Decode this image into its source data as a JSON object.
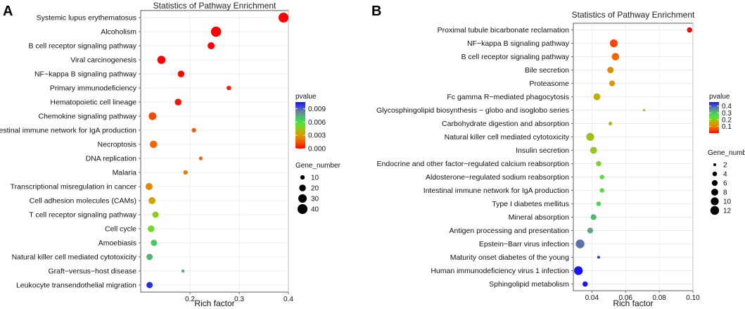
{
  "panels": [
    {
      "letter": "A",
      "chart_data": {
        "type": "scatter",
        "title": "Statistics of Pathway Enrichment",
        "xlabel": "Rich factor",
        "ylabel": "",
        "xlim": [
          0.1,
          0.4
        ],
        "xticks": [
          {
            "value": 0.2,
            "label": "0.2"
          },
          {
            "value": 0.3,
            "label": "0.3"
          },
          {
            "value": 0.4,
            "label": "0.4"
          }
        ],
        "grid": true,
        "categories": [
          "Systemic lupus erythematosus",
          "Alcoholism",
          "B cell receptor signaling pathway",
          "Viral carcinogenesis",
          "NF−kappa B signaling pathway",
          "Primary immunodeficiency",
          "Hematopoietic cell lineage",
          "Chemokine signaling pathway",
          "ntestinal immune network for IgA production",
          "Necroptosis",
          "DNA replication",
          "Malaria",
          "Transcriptional misregulation in cancer",
          "Cell adhesion molecules (CAMs)",
          "T cell receptor signaling pathway",
          "Cell cycle",
          "Amoebiasis",
          "Natural killer cell mediated cytotoxicity",
          "Graft−versus−host disease",
          "Leukocyte transendothelial migration"
        ],
        "points": [
          {
            "rich": 0.39,
            "pvalue": 0.0,
            "genes": 40
          },
          {
            "rich": 0.253,
            "pvalue": 0.0,
            "genes": 42
          },
          {
            "rich": 0.243,
            "pvalue": 0.0,
            "genes": 22
          },
          {
            "rich": 0.142,
            "pvalue": 0.0,
            "genes": 28
          },
          {
            "rich": 0.182,
            "pvalue": 0.0001,
            "genes": 20
          },
          {
            "rich": 0.279,
            "pvalue": 0.0004,
            "genes": 10
          },
          {
            "rich": 0.176,
            "pvalue": 0.0003,
            "genes": 20
          },
          {
            "rich": 0.124,
            "pvalue": 0.0012,
            "genes": 26
          },
          {
            "rich": 0.208,
            "pvalue": 0.0014,
            "genes": 10
          },
          {
            "rich": 0.126,
            "pvalue": 0.0016,
            "genes": 24
          },
          {
            "rich": 0.222,
            "pvalue": 0.0018,
            "genes": 8
          },
          {
            "rich": 0.191,
            "pvalue": 0.0022,
            "genes": 10
          },
          {
            "rich": 0.117,
            "pvalue": 0.0025,
            "genes": 22
          },
          {
            "rich": 0.123,
            "pvalue": 0.0034,
            "genes": 22
          },
          {
            "rich": 0.13,
            "pvalue": 0.0048,
            "genes": 18
          },
          {
            "rich": 0.121,
            "pvalue": 0.0052,
            "genes": 20
          },
          {
            "rich": 0.127,
            "pvalue": 0.0068,
            "genes": 18
          },
          {
            "rich": 0.118,
            "pvalue": 0.0072,
            "genes": 18
          },
          {
            "rich": 0.186,
            "pvalue": 0.007,
            "genes": 6
          },
          {
            "rich": 0.118,
            "pvalue": 0.01,
            "genes": 18
          }
        ],
        "legend_color": {
          "title": "pvalue",
          "min": 0.0,
          "max": 0.0105,
          "ticks": [
            {
              "value": 0.009,
              "label": "0.009"
            },
            {
              "value": 0.006,
              "label": "0.006"
            },
            {
              "value": 0.003,
              "label": "0.003"
            },
            {
              "value": 0.0,
              "label": "0.000"
            }
          ]
        },
        "legend_size": {
          "title": "Gene_number",
          "min": 5,
          "max": 45,
          "entries": [
            {
              "value": 10,
              "label": "10"
            },
            {
              "value": 20,
              "label": "20"
            },
            {
              "value": 30,
              "label": "30"
            },
            {
              "value": 40,
              "label": "40"
            }
          ]
        }
      }
    },
    {
      "letter": "B",
      "chart_data": {
        "type": "scatter",
        "title": "Statistics of Pathway Enrichment",
        "xlabel": "Rich factor",
        "ylabel": "",
        "xlim": [
          0.029,
          0.1
        ],
        "xticks": [
          {
            "value": 0.04,
            "label": "0.04"
          },
          {
            "value": 0.06,
            "label": "0.06"
          },
          {
            "value": 0.08,
            "label": "0.08"
          },
          {
            "value": 0.1,
            "label": "0.10"
          }
        ],
        "grid": true,
        "categories": [
          "Proximal tubule bicarbonate reclamation",
          "NF−kappa B signaling pathway",
          "B cell receptor signaling pathway",
          "Bile secretion",
          "Proteasome",
          "Fc gamma R−mediated phagocytosis",
          "Glycosphingolipid biosynthesis − globo and isoglobo series",
          "Carbohydrate digestion and absorption",
          "Natural killer cell mediated cytotoxicity",
          "Insulin secretion",
          "Endocrine and other factor−regulated calcium reabsorption",
          "Aldosterone−regulated sodium reabsorption",
          "Intestinal immune network for IgA production",
          "Type I diabetes mellitus",
          "Mineral absorption",
          "Antigen processing and presentation",
          "Epstein−Barr virus infection",
          "Maturity onset diabetes of the young",
          "Human immunodeficiency virus 1 infection",
          "Sphingolipid metabolism"
        ],
        "points": [
          {
            "rich": 0.098,
            "pvalue": 0.0,
            "genes": 5
          },
          {
            "rich": 0.053,
            "pvalue": 0.05,
            "genes": 10
          },
          {
            "rich": 0.054,
            "pvalue": 0.07,
            "genes": 9
          },
          {
            "rich": 0.051,
            "pvalue": 0.12,
            "genes": 7
          },
          {
            "rich": 0.052,
            "pvalue": 0.13,
            "genes": 6
          },
          {
            "rich": 0.043,
            "pvalue": 0.16,
            "genes": 8
          },
          {
            "rich": 0.071,
            "pvalue": 0.18,
            "genes": 1.5
          },
          {
            "rich": 0.051,
            "pvalue": 0.19,
            "genes": 3
          },
          {
            "rich": 0.039,
            "pvalue": 0.19,
            "genes": 10
          },
          {
            "rich": 0.041,
            "pvalue": 0.2,
            "genes": 8
          },
          {
            "rich": 0.044,
            "pvalue": 0.22,
            "genes": 5
          },
          {
            "rich": 0.046,
            "pvalue": 0.25,
            "genes": 4
          },
          {
            "rich": 0.046,
            "pvalue": 0.25,
            "genes": 4
          },
          {
            "rich": 0.044,
            "pvalue": 0.28,
            "genes": 4
          },
          {
            "rich": 0.041,
            "pvalue": 0.31,
            "genes": 6
          },
          {
            "rich": 0.039,
            "pvalue": 0.33,
            "genes": 6
          },
          {
            "rich": 0.033,
            "pvalue": 0.38,
            "genes": 12
          },
          {
            "rich": 0.044,
            "pvalue": 0.43,
            "genes": 2
          },
          {
            "rich": 0.032,
            "pvalue": 0.46,
            "genes": 12
          },
          {
            "rich": 0.036,
            "pvalue": 0.47,
            "genes": 5
          }
        ],
        "legend_color": {
          "title": "pvalue",
          "min": 0.0,
          "max": 0.46,
          "ticks": [
            {
              "value": 0.4,
              "label": "0.4"
            },
            {
              "value": 0.3,
              "label": "0.3"
            },
            {
              "value": 0.2,
              "label": "0.2"
            },
            {
              "value": 0.1,
              "label": "0.1"
            }
          ]
        },
        "legend_size": {
          "title": "Gene_number",
          "min": 1,
          "max": 13,
          "entries": [
            {
              "value": 2,
              "label": "2"
            },
            {
              "value": 4,
              "label": "4"
            },
            {
              "value": 6,
              "label": "6"
            },
            {
              "value": 8,
              "label": "8"
            },
            {
              "value": 10,
              "label": "10"
            },
            {
              "value": 12,
              "label": "12"
            }
          ]
        }
      }
    }
  ]
}
